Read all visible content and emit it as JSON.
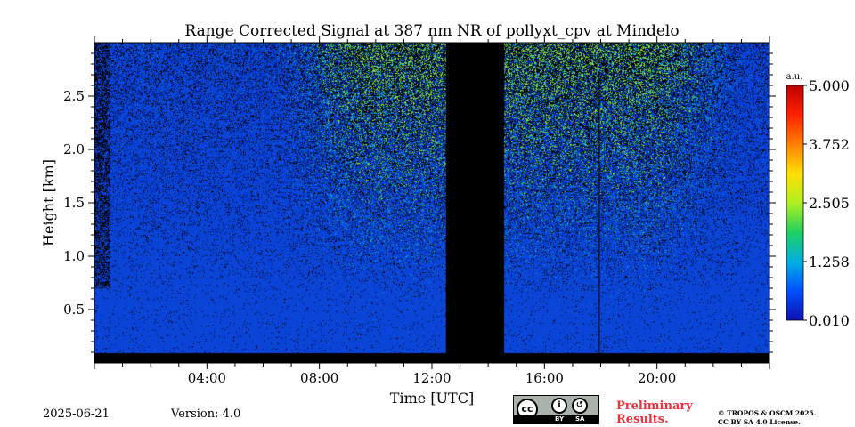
{
  "chart_data": {
    "type": "heatmap",
    "title": "Range Corrected Signal at 387 nm NR of pollyxt_cpv at Mindelo",
    "xlabel": "Time [UTC]",
    "ylabel": "Height [km]",
    "xlim_hours": [
      0,
      24
    ],
    "ylim_km": [
      0,
      3.0
    ],
    "xticks": [
      {
        "hour": 4,
        "label": "04:00"
      },
      {
        "hour": 8,
        "label": "08:00"
      },
      {
        "hour": 12,
        "label": "12:00"
      },
      {
        "hour": 16,
        "label": "16:00"
      },
      {
        "hour": 20,
        "label": "20:00"
      }
    ],
    "yticks": [
      {
        "km": 0.5,
        "label": "0.5"
      },
      {
        "km": 1.0,
        "label": "1.0"
      },
      {
        "km": 1.5,
        "label": "1.5"
      },
      {
        "km": 2.0,
        "label": "2.0"
      },
      {
        "km": 2.5,
        "label": "2.5"
      }
    ],
    "colorbar": {
      "unit": "a.u.",
      "min": 0.01,
      "max": 5.0,
      "ticks": [
        "5.000",
        "3.752",
        "2.505",
        "1.258",
        "0.010"
      ],
      "colors": [
        "#1010b0",
        "#0050ff",
        "#00b0e0",
        "#20d060",
        "#b0f020",
        "#ffe000",
        "#ff8000",
        "#ff2000",
        "#c00000"
      ]
    },
    "data_gaps_hours": [
      [
        12.5,
        14.55
      ]
    ],
    "vertical_line_hour": 17.95,
    "background_level_color": "#0a45d8"
  },
  "footer": {
    "date": "2025-06-21",
    "version": "Version: 4.0",
    "preliminary": "Preliminary\nResults.",
    "copyright": "© TROPOS & OSCM 2025.\nCC BY SA 4.0 License.",
    "license_badge": {
      "cc": "cc",
      "by": "BY",
      "sa": "SA"
    }
  }
}
